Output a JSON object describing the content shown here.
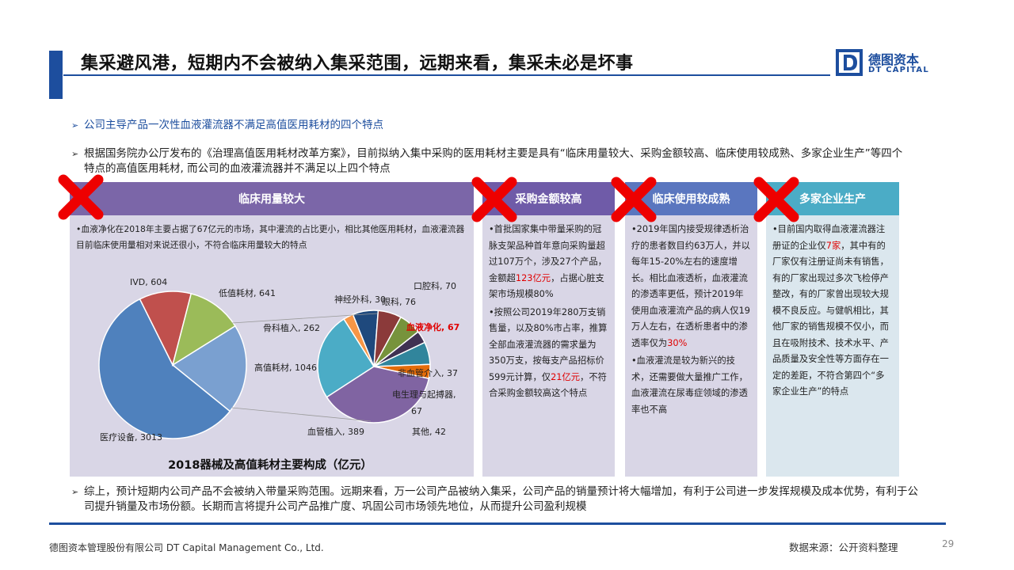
{
  "header": {
    "title": "集采避风港，短期内不会被纳入集采范围，远期来看，集采未必是坏事",
    "logo_cn": "德图资本",
    "logo_en": "DT CAPITAL",
    "accent_color": "#1d4e9e"
  },
  "bullets": {
    "b1": "公司主导产品一次性血液灌流器不满足高值医用耗材的四个特点",
    "b2": "根据国务院办公厅发布的《治理高值医用耗材改革方案》，目前拟纳入集中采购的医用耗材主要是具有“临床用量较大、采购金额较高、临床使用较成熟、多家企业生产”等四个特点的高值医用耗材, 而公司的血液灌流器并不满足以上四个特点",
    "b3": "综上，预计短期内公司产品不会被纳入带量采购范围。远期来看，万一公司产品被纳入集采，公司产品的销量预计将大幅增加，有利于公司进一步发挥规模及成本优势，有利于公司提升销量及市场份额。长期而言将提升公司产品推广度、巩固公司市场领先地位，从而提升公司盈利规模"
  },
  "panels": {
    "volume": {
      "header": "临床用量较大",
      "text": "•血液净化在2018年主要占据了67亿元的市场，其中灌流的占比更小，相比其他医用耗材，血液灌流器目前临床使用量相对来说还很小，不符合临床用量较大的特点"
    },
    "amount": {
      "header": "采购金额较高",
      "p1_a": "•首批国家集中带量采购的冠脉支架品种首年意向采购量超过107万个，涉及27个产品，金额超",
      "p1_red": "123亿元",
      "p1_b": "，占据心脏支架市场规模80%",
      "p2_a": "•按照公司2019年280万支销售量，以及80%市占率，推算全部血液灌流器的需求量为350万支，按每支产品招标价599元计算，仅",
      "p2_red": "21亿元",
      "p2_b": "，不符合采购金额较高这个特点"
    },
    "mature": {
      "header": "临床使用较成熟",
      "p1_a": "•2019年国内接受规律透析治疗的患者数目约63万人，并以每年15-20%左右的速度增长。相比血液透析，血液灌流的渗透率更低，预计2019年使用血液灌流产品的病人仅19万人左右，在透析患者中的渗透率仅为",
      "p1_red": "30%",
      "p2": "•血液灌流是较为新兴的技术，还需要做大量推广工作，血液灌流在尿毒症领域的渗透率也不高"
    },
    "vendor": {
      "header": "多家企业生产",
      "p1_a": "•目前国内取得血液灌流器注册证的企业仅",
      "p1_red": "7家",
      "p1_b": "，其中有的厂家仅有注册证尚未有销售，有的厂家出现过多次飞检停产整改，有的厂家曾出现较大规模不良反应。与健帆相比，其他厂家的销售规模不仅小，而且在吸附技术、技术水平、产品质量及安全性等方面存在一定的差距，不符合第四个“多家企业生产”的特点"
    }
  },
  "chart_data": {
    "type": "pie",
    "title": "2018器械及高值耗材主要构成（亿元）",
    "main_pie": {
      "slices": [
        {
          "label": "医疗设备",
          "value": 3013,
          "color": "#4f81bd"
        },
        {
          "label": "高值耗材",
          "value": 1046,
          "color": "#7aa0d0"
        },
        {
          "label": "低值耗材",
          "value": 641,
          "color": "#9bbb59"
        },
        {
          "label": "IVD",
          "value": 604,
          "color": "#c0504d"
        }
      ],
      "label_texts": [
        "医疗设备, 3013",
        "高值耗材, 1046",
        "低值耗材, 641",
        "IVD, 604"
      ]
    },
    "sub_pie": {
      "slices": [
        {
          "label": "骨科植入",
          "value": 262,
          "color": "#4bacc6"
        },
        {
          "label": "神经外科",
          "value": 30,
          "color": "#f79646"
        },
        {
          "label": "眼科",
          "value": 76,
          "color": "#1f497d"
        },
        {
          "label": "口腔科",
          "value": 70,
          "color": "#8b3a3a"
        },
        {
          "label": "血液净化",
          "value": 67,
          "color": "#77933c"
        },
        {
          "label": "非血管介入",
          "value": 37,
          "color": "#403152"
        },
        {
          "label": "电生理与起搏器",
          "value": 67,
          "color": "#31859c"
        },
        {
          "label": "其他",
          "value": 42,
          "color": "#e46c0a"
        },
        {
          "label": "血管植入",
          "value": 389,
          "color": "#8064a2"
        }
      ],
      "label_texts": {
        "bone": "骨科植入, 262",
        "neuro": "神经外科, 30",
        "eye": "眼科, 76",
        "oral": "口腔科, 70",
        "blood": "血液净化, 67",
        "nonvasc": "非血管介入, 37",
        "ep1": "电生理与起搏器,",
        "ep2": "67",
        "other": "其他, 42",
        "vasc": "血管植入, 389"
      },
      "highlight_color": "#e00000"
    }
  },
  "footer": {
    "company": "德图资本管理股份有限公司 DT Capital Management Co., Ltd.",
    "source": "数据来源：公开资料整理",
    "page": "29"
  }
}
